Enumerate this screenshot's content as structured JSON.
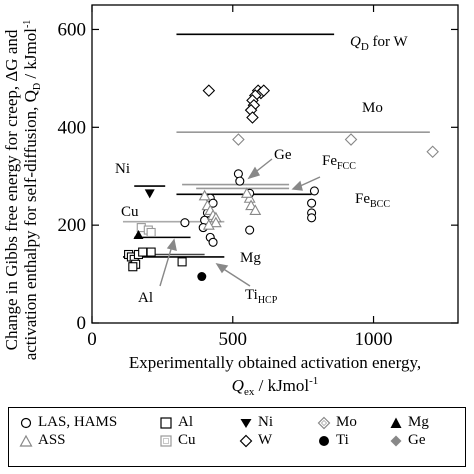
{
  "chart_data": {
    "type": "scatter",
    "xlabel_line1": "Experimentally obtained activation energy,",
    "xlabel_line2": "Q",
    "xlabel_sub": "ex",
    "xlabel_unit": " / kJmol",
    "xlabel_sup": "-1",
    "ylabel_line1": "Change in Gibbs free energy for creep, ΔG and",
    "ylabel_line2": "activation enthalpy for self-diffusion, Q",
    "ylabel_sub": "D",
    "ylabel_unit": " / kJmol",
    "ylabel_sup": "-1",
    "xlim": [
      0,
      1300
    ],
    "ylim": [
      0,
      650
    ],
    "xticks": [
      0,
      500,
      1000
    ],
    "yticks": [
      0,
      200,
      400,
      600
    ],
    "series": [
      {
        "name": "LAS, HAMS",
        "marker": "circle-open",
        "color": "#000000",
        "points": [
          [
            520,
            305
          ],
          [
            525,
            290
          ],
          [
            420,
            255
          ],
          [
            430,
            245
          ],
          [
            410,
            225
          ],
          [
            400,
            210
          ],
          [
            395,
            195
          ],
          [
            420,
            175
          ],
          [
            430,
            165
          ],
          [
            330,
            205
          ],
          [
            560,
            265
          ],
          [
            560,
            190
          ],
          [
            790,
            270
          ],
          [
            780,
            245
          ],
          [
            780,
            225
          ],
          [
            780,
            215
          ]
        ]
      },
      {
        "name": "ASS",
        "marker": "triangle-open",
        "color": "#888888",
        "points": [
          [
            400,
            260
          ],
          [
            410,
            240
          ],
          [
            420,
            230
          ],
          [
            430,
            220
          ],
          [
            440,
            215
          ],
          [
            440,
            205
          ],
          [
            415,
            200
          ],
          [
            560,
            255
          ],
          [
            565,
            240
          ],
          [
            580,
            230
          ],
          [
            550,
            265
          ]
        ]
      },
      {
        "name": "Al",
        "marker": "square-open",
        "color": "#000000",
        "points": [
          [
            130,
            140
          ],
          [
            140,
            135
          ],
          [
            150,
            130
          ],
          [
            155,
            120
          ],
          [
            145,
            115
          ],
          [
            165,
            140
          ],
          [
            180,
            145
          ],
          [
            210,
            145
          ],
          [
            320,
            125
          ]
        ]
      },
      {
        "name": "Cu",
        "marker": "square-open",
        "color": "#999999",
        "points": [
          [
            175,
            195
          ],
          [
            200,
            190
          ],
          [
            210,
            185
          ]
        ]
      },
      {
        "name": "Ni",
        "marker": "triangle-down-filled",
        "color": "#000000",
        "points": [
          [
            205,
            265
          ]
        ]
      },
      {
        "name": "W",
        "marker": "diamond-open",
        "color": "#000000",
        "points": [
          [
            415,
            475
          ],
          [
            590,
            475
          ],
          [
            600,
            470
          ],
          [
            580,
            465
          ],
          [
            570,
            455
          ],
          [
            575,
            445
          ],
          [
            565,
            435
          ],
          [
            570,
            420
          ],
          [
            610,
            475
          ]
        ]
      },
      {
        "name": "Mo",
        "marker": "diamond-open",
        "color": "#888888",
        "points": [
          [
            520,
            375
          ],
          [
            920,
            375
          ],
          [
            1210,
            350
          ]
        ]
      },
      {
        "name": "Ti",
        "marker": "circle-filled",
        "color": "#000000",
        "points": [
          [
            390,
            95
          ]
        ]
      },
      {
        "name": "Mg",
        "marker": "triangle-filled",
        "color": "#000000",
        "points": [
          [
            165,
            180
          ]
        ]
      },
      {
        "name": "Ge",
        "marker": "diamond-filled",
        "color": "#888888",
        "points": []
      }
    ],
    "hlines": [
      {
        "label": "QD for W",
        "y": 590,
        "x": [
          300,
          860
        ],
        "color": "#000000"
      },
      {
        "label": "Mo",
        "y": 390,
        "x": [
          300,
          1200
        ],
        "color": "#999999"
      },
      {
        "label": "Ni",
        "y": 280,
        "x": [
          150,
          260
        ],
        "color": "#000000"
      },
      {
        "label": "FeFCC",
        "y": 283,
        "x": [
          320,
          700
        ],
        "color": "#999999"
      },
      {
        "label": "Ge",
        "y": 275,
        "x": [
          370,
          700
        ],
        "color": "#999999"
      },
      {
        "label": "FeBCC",
        "y": 263,
        "x": [
          300,
          780
        ],
        "color": "#000000"
      },
      {
        "label": "Cu",
        "y": 207,
        "x": [
          110,
          470
        ],
        "color": "#aaaaaa"
      },
      {
        "label": "Al",
        "y": 175,
        "x": [
          150,
          350
        ],
        "color": "#000000"
      },
      {
        "label": "Mg",
        "y": 135,
        "x": [
          110,
          470
        ],
        "color": "#000000"
      },
      {
        "label": "TiHCP",
        "y": 140,
        "x": [
          130,
          400
        ],
        "color": "#444444"
      }
    ],
    "annotations": {
      "qd_w": "Q",
      "qd_w_sub": "D",
      "qd_w_rest": " for W",
      "mo": "Mo",
      "ge": "Ge",
      "fe_fcc": "Fe",
      "fe_fcc_sub": "FCC",
      "fe_bcc": "Fe",
      "fe_bcc_sub": "BCC",
      "ni": "Ni",
      "cu": "Cu",
      "mg": "Mg",
      "al": "Al",
      "ti_hcp": "Ti",
      "ti_hcp_sub": "HCP"
    }
  },
  "legend": {
    "las_hams": "LAS, HAMS",
    "ass": "ASS",
    "al": "Al",
    "cu": "Cu",
    "ni": "Ni",
    "w": "W",
    "mo": "Mo",
    "ti": "Ti",
    "mg": "Mg",
    "ge": "Ge"
  }
}
